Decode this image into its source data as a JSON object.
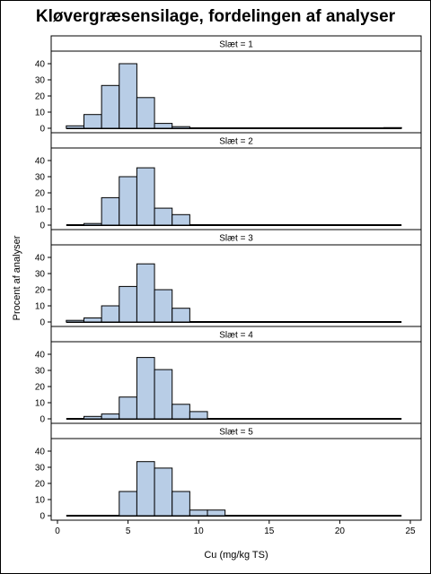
{
  "chart_data": {
    "type": "bar",
    "title": "Kløvergræsensilage, fordelingen af analyser",
    "xlabel": "Cu (mg/kg TS)",
    "ylabel": "Procent af analyser",
    "xlim": [
      0,
      25
    ],
    "ylim": [
      0,
      45
    ],
    "x_ticks": [
      0,
      5,
      10,
      15,
      20,
      25
    ],
    "y_ticks": [
      0,
      10,
      20,
      30,
      40
    ],
    "bin_width": 1.25,
    "grid": false,
    "bar_color": "#b8cde6",
    "bar_edge_color": "#000000",
    "panels": [
      {
        "label": "Slæt = 1",
        "bins": [
          {
            "x0": 0.625,
            "value": 1.5
          },
          {
            "x0": 1.875,
            "value": 8.5
          },
          {
            "x0": 3.125,
            "value": 26.5
          },
          {
            "x0": 4.375,
            "value": 40
          },
          {
            "x0": 5.625,
            "value": 19
          },
          {
            "x0": 6.875,
            "value": 3
          },
          {
            "x0": 8.125,
            "value": 1
          },
          {
            "x0": 23.125,
            "value": 0.4
          }
        ]
      },
      {
        "label": "Slæt = 2",
        "bins": [
          {
            "x0": 1.875,
            "value": 1
          },
          {
            "x0": 3.125,
            "value": 17
          },
          {
            "x0": 4.375,
            "value": 30
          },
          {
            "x0": 5.625,
            "value": 35.5
          },
          {
            "x0": 6.875,
            "value": 10.5
          },
          {
            "x0": 8.125,
            "value": 6.5
          }
        ]
      },
      {
        "label": "Slæt = 3",
        "bins": [
          {
            "x0": 0.625,
            "value": 1
          },
          {
            "x0": 1.875,
            "value": 2.5
          },
          {
            "x0": 3.125,
            "value": 10
          },
          {
            "x0": 4.375,
            "value": 22
          },
          {
            "x0": 5.625,
            "value": 36
          },
          {
            "x0": 6.875,
            "value": 20
          },
          {
            "x0": 8.125,
            "value": 8.5
          }
        ]
      },
      {
        "label": "Slæt = 4",
        "bins": [
          {
            "x0": 1.875,
            "value": 1.5
          },
          {
            "x0": 3.125,
            "value": 3
          },
          {
            "x0": 4.375,
            "value": 13.5
          },
          {
            "x0": 5.625,
            "value": 38
          },
          {
            "x0": 6.875,
            "value": 30.5
          },
          {
            "x0": 8.125,
            "value": 9
          },
          {
            "x0": 9.375,
            "value": 4.5
          }
        ]
      },
      {
        "label": "Slæt = 5",
        "bins": [
          {
            "x0": 4.375,
            "value": 15
          },
          {
            "x0": 5.625,
            "value": 33.5
          },
          {
            "x0": 6.875,
            "value": 29.5
          },
          {
            "x0": 8.125,
            "value": 15
          },
          {
            "x0": 9.375,
            "value": 3.5
          },
          {
            "x0": 10.625,
            "value": 3.5
          }
        ]
      }
    ]
  }
}
